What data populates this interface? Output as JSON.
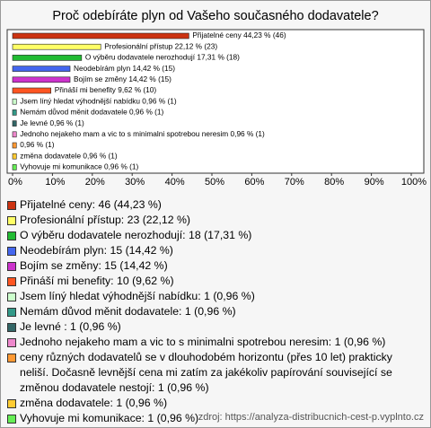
{
  "chart_data": {
    "type": "bar",
    "title": "Proč odebíráte plyn od Vašeho současného dodavatele?",
    "categories": [
      "Přijatelné ceny: 46 (44,23 %)",
      "Profesionální přístup: 23 (22,12 %)",
      "O výběru dodavatele nerozhodují: 18 (17,31 %)",
      "Neodebírám plyn: 15 (14,42 %)",
      "Bojím se změny: 15 (14,42 %)",
      "Přináší mi benefity: 10 (9,62 %)",
      "Jsem líný hledat výhodnější nabídku: 1 (0,96 %)",
      "Nemám důvod měnit dodavatele: 1 (0,96 %)",
      "Je levné : 1 (0,96 %)",
      "Jednoho nejakeho mam a vic to s minimalni spotrebou neresim: 1 (0,96 %)",
      "ceny různých dodavatelů se v dlouhodobém horizontu (přes 10 let) prakticky neliší. Dočasně levnější cena mi zatím za jakékoliv papírování související se změnou dodavatele nestojí: 1 (0,96 %)",
      "změna dodavatele: 1 (0,96 %)",
      "Vyhovuje mi komunikace: 1 (0,96 %)"
    ],
    "values": [
      44.23,
      22.12,
      17.31,
      14.42,
      14.42,
      9.62,
      0.96,
      0.96,
      0.96,
      0.96,
      0.96,
      0.96,
      0.96
    ],
    "value_labels": [
      "Přijatelné ceny 44,23 % (46)",
      "Profesionální přístup 22,12 % (23)",
      "O výběru dodavatele nerozhodují 17,31 % (18)",
      "Neodebírám plyn 14,42 % (15)",
      "Bojím se změny 14,42 % (15)",
      "Přináší mi benefity 9,62 % (10)",
      "Jsem líný hledat výhodnější nabídku 0,96 % (1)",
      "Nemám důvod měnit dodavatele 0,96 % (1)",
      "Je levné  0,96 % (1)",
      "Jednoho nejakeho mam a vic to s minimalni spotrebou neresim 0,96 % (1)",
      "0,96 % (1)",
      "změna dodavatele 0,96 % (1)",
      "Vyhovuje mi komunikace 0,96 % (1)"
    ],
    "colors": [
      "#cc3311",
      "#ffff66",
      "#22bb33",
      "#4466ee",
      "#cc33cc",
      "#ff5522",
      "#ccffcc",
      "#339988",
      "#336666",
      "#ee88cc",
      "#ff9933",
      "#ffcc33",
      "#66ee55"
    ],
    "xlim": [
      0,
      100
    ],
    "xticks": [
      {
        "value": 0,
        "label": "0%"
      },
      {
        "value": 10,
        "label": "10%"
      },
      {
        "value": 20,
        "label": "20%"
      },
      {
        "value": 30,
        "label": "30%"
      },
      {
        "value": 40,
        "label": "40%"
      },
      {
        "value": 50,
        "label": "50%"
      },
      {
        "value": 60,
        "label": "60%"
      },
      {
        "value": 70,
        "label": "70%"
      },
      {
        "value": 80,
        "label": "80%"
      },
      {
        "value": 90,
        "label": "90%"
      },
      {
        "value": 100,
        "label": "100%"
      }
    ],
    "source": "zdroj: https://analyza-distribucnich-cest-p.vyplnto.cz"
  }
}
